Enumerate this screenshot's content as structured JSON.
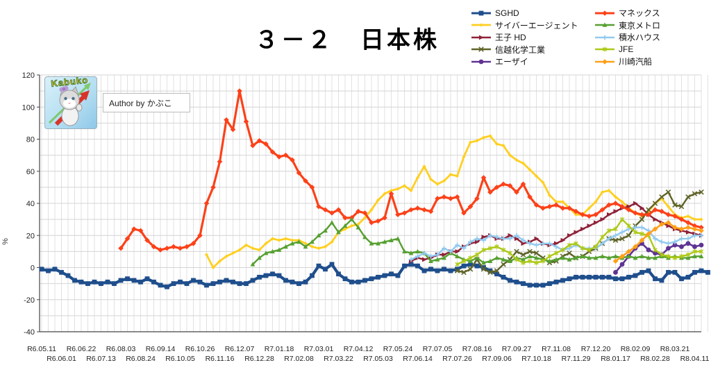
{
  "header": {
    "author_credit": "Author by かぶこ",
    "logo_text": "Kabuko"
  },
  "chart_data": {
    "type": "line",
    "title": "３－２　日本株",
    "ylabel": "%",
    "ylim": [
      -40,
      120
    ],
    "ytick_step": 20,
    "grid": "on",
    "legend_position": "top-right",
    "n_points": 101,
    "points_per_tick": 3,
    "x_tick_labels": [
      "R6.05.11",
      "R6.06.01",
      "R6.06.22",
      "R6.07.13",
      "R6.08.03",
      "R6.08.24",
      "R6.09.14",
      "R6.10.05",
      "R6.10.26",
      "R6.11.16",
      "R6.12.07",
      "R6.12.28",
      "R7.01.18",
      "R7.02.08",
      "R7.03.01",
      "R7.03.22",
      "R7.04.12",
      "R7.05.03",
      "R7.05.24",
      "R7.06.14",
      "R7.07.05",
      "R7.07.26",
      "R7.08.16",
      "R7.09.06",
      "R7.09.27",
      "R7.10.18",
      "R7.11.08",
      "R7.11.29",
      "R7.12.20",
      "R8.01.17",
      "R8.02.09",
      "R8.02.28",
      "R8.03.21",
      "R8.04.11"
    ],
    "y_tick_labels": [
      120,
      100,
      80,
      60,
      40,
      20,
      0,
      -20,
      -40
    ],
    "legend_columns": [
      [
        0,
        1,
        2,
        3,
        4
      ],
      [
        5,
        6,
        7,
        8,
        9
      ]
    ],
    "series": [
      {
        "name": "SGHD",
        "color": "#1f4e8c",
        "marker": "square",
        "width": 4.2,
        "start": 0,
        "values": [
          -1,
          -2,
          -1,
          -3,
          -5,
          -8,
          -9,
          -10,
          -9,
          -10,
          -9,
          -10,
          -8,
          -7,
          -8,
          -9,
          -7,
          -9,
          -11,
          -12,
          -10,
          -9,
          -10,
          -8,
          -9,
          -11,
          -10,
          -9,
          -8,
          -9,
          -10,
          -10,
          -8,
          -6,
          -5,
          -4,
          -5,
          -8,
          -9,
          -10,
          -9,
          -5,
          1,
          -1,
          2,
          -4,
          -7,
          -9,
          -9,
          -8,
          -7,
          -6,
          -5,
          -4,
          -5,
          1,
          2,
          1,
          -2,
          -1,
          -2,
          -1,
          -2,
          -1,
          1,
          2,
          1,
          0,
          -2,
          -4,
          -6,
          -8,
          -9,
          -10,
          -11,
          -11,
          -11,
          -10,
          -9,
          -8,
          -7,
          -6,
          -6,
          -6,
          -6,
          -6,
          -6,
          -7,
          -7,
          -6,
          -5,
          -3,
          -2,
          -7,
          -8,
          -3,
          -3,
          -7,
          -6,
          -3,
          -2,
          -3
        ]
      },
      {
        "name": "サイバーエージェント",
        "color": "#ffcf21",
        "marker": "diamond-small",
        "width": 2.8,
        "start": 25,
        "values": [
          8,
          0,
          4,
          7,
          9,
          11,
          14,
          12,
          11,
          15,
          18,
          17,
          18,
          17,
          17,
          15,
          13,
          12,
          13,
          16,
          22,
          24,
          26,
          27,
          31,
          36,
          42,
          46,
          48,
          49,
          51,
          48,
          56,
          63,
          55,
          52,
          54,
          58,
          57,
          69,
          78,
          79,
          81,
          82,
          77,
          76,
          70,
          67,
          65,
          61,
          57,
          53,
          45,
          41,
          41,
          37,
          33,
          33,
          37,
          41,
          47,
          48,
          44,
          41,
          37,
          34,
          32,
          35,
          40,
          43,
          38,
          33,
          31,
          32,
          30,
          30
        ]
      },
      {
        "name": "王子 HD",
        "color": "#8f2138",
        "marker": "triangle-right",
        "width": 2.4,
        "start": 56,
        "values": [
          4,
          6,
          5,
          6,
          8,
          8,
          10,
          10,
          13,
          15,
          16,
          19,
          20,
          18,
          18,
          20,
          18,
          15,
          16,
          18,
          15,
          14,
          15,
          17,
          20,
          22,
          24,
          26,
          28,
          30,
          33,
          35,
          37,
          38,
          40,
          37,
          33,
          30,
          28,
          26,
          24,
          23,
          22,
          21,
          20
        ]
      },
      {
        "name": "信越化学工業",
        "color": "#5f6327",
        "marker": "x",
        "width": 2.4,
        "start": 63,
        "values": [
          -2,
          -3,
          -1,
          5,
          -1,
          -3,
          -2,
          2,
          5,
          10,
          8,
          10,
          9,
          6,
          3,
          4,
          7,
          9,
          6,
          7,
          10,
          12,
          15,
          18,
          17,
          18,
          20,
          26,
          30,
          36,
          40,
          44,
          47,
          39,
          38,
          44,
          46,
          47
        ]
      },
      {
        "name": "エーザイ",
        "color": "#5f3393",
        "marker": "circle",
        "width": 2.6,
        "start": 87,
        "values": [
          -3,
          2,
          7,
          12,
          15,
          11,
          9,
          8,
          12,
          14,
          13,
          15,
          13,
          14
        ]
      },
      {
        "name": "マネックス",
        "color": "#fc4119",
        "marker": "diamond",
        "width": 3.2,
        "start": 12,
        "values": [
          12,
          18,
          24,
          23,
          17,
          13,
          11,
          12,
          13,
          12,
          13,
          15,
          20,
          40,
          50,
          66,
          92,
          86,
          110,
          91,
          76,
          79,
          77,
          72,
          69,
          70,
          67,
          59,
          54,
          50,
          38,
          36,
          34,
          36,
          31,
          31,
          35,
          34,
          28,
          29,
          31,
          46,
          33,
          34,
          36,
          37,
          36,
          35,
          43,
          44,
          43,
          44,
          34,
          38,
          43,
          56,
          47,
          50,
          52,
          51,
          47,
          52,
          44,
          39,
          37,
          38,
          39,
          37,
          37,
          35,
          33,
          32,
          33,
          36,
          39,
          40,
          38,
          36,
          34,
          33,
          33,
          36,
          35,
          33,
          32,
          30,
          28,
          26,
          25
        ]
      },
      {
        "name": "東京メトロ",
        "color": "#56a031",
        "marker": "triangle",
        "width": 2.4,
        "start": 32,
        "values": [
          2,
          6,
          9,
          10,
          11,
          13,
          15,
          16,
          13,
          16,
          20,
          23,
          28,
          22,
          26,
          30,
          25,
          19,
          15,
          15,
          16,
          17,
          18,
          10,
          9,
          10,
          9,
          4,
          5,
          6,
          9,
          7,
          5,
          4,
          6,
          3,
          4,
          6,
          5,
          4,
          6,
          5,
          7,
          6,
          5,
          4,
          5,
          6,
          5,
          6,
          7,
          6,
          6,
          7,
          6,
          7,
          6,
          7,
          6,
          7,
          6,
          6,
          7,
          6,
          7,
          6,
          6,
          7,
          7
        ]
      },
      {
        "name": "積水ハウス",
        "color": "#92c9ef",
        "marker": "plus",
        "width": 2.4,
        "start": 56,
        "values": [
          5,
          7,
          9,
          7,
          8,
          12,
          10,
          14,
          12,
          16,
          18,
          17,
          20,
          19,
          18,
          18,
          20,
          17,
          15,
          14,
          15,
          15,
          13,
          11,
          12,
          14,
          12,
          12,
          12,
          15,
          18,
          20,
          22,
          24,
          25,
          25,
          23,
          18,
          16,
          15,
          16,
          18,
          18,
          20,
          20
        ]
      },
      {
        "name": "JFE",
        "color": "#aec918",
        "marker": "asterisk",
        "width": 2.4,
        "start": 63,
        "values": [
          2,
          4,
          6,
          8,
          11,
          12,
          13,
          11,
          9,
          5,
          3,
          4,
          3,
          4,
          7,
          9,
          11,
          14,
          15,
          12,
          11,
          13,
          19,
          23,
          24,
          30,
          26,
          22,
          21,
          20,
          11,
          8,
          7,
          6,
          7,
          8,
          10,
          10
        ]
      },
      {
        "name": "川崎汽船",
        "color": "#ffa019",
        "marker": "diamond",
        "width": 2.6,
        "start": 87,
        "values": [
          4,
          7,
          10,
          13,
          17,
          21,
          24,
          27,
          28,
          25,
          24,
          25,
          24,
          23
        ]
      }
    ]
  }
}
